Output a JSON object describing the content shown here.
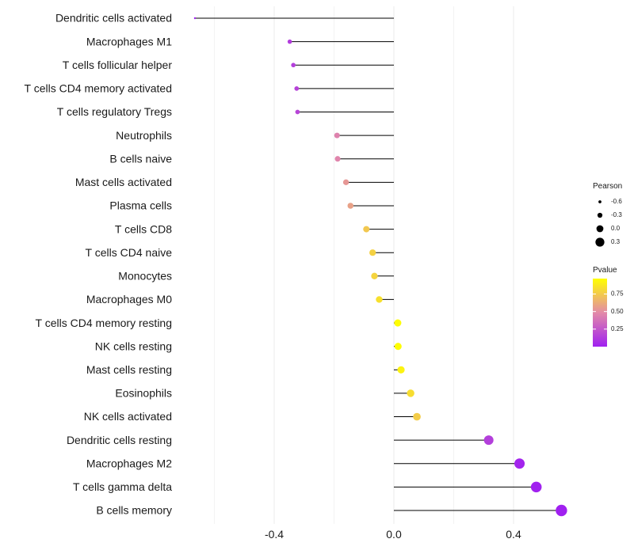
{
  "chart_data": {
    "type": "lollipop",
    "title": "",
    "xlabel": "",
    "ylabel": "",
    "xlim": [
      -0.66,
      0.6
    ],
    "x_ticks": [
      -0.4,
      0.0,
      0.4
    ],
    "x_tick_labels": [
      "-0.4",
      "0.0",
      "0.4"
    ],
    "grid": true,
    "categories": [
      "Dendritic cells activated",
      "Macrophages M1",
      "T cells follicular helper",
      "T cells CD4 memory activated",
      "T cells regulatory  Tregs",
      "Neutrophils",
      "B cells naive",
      "Mast cells activated",
      "Plasma cells",
      "T cells CD8",
      "T cells CD4 naive",
      "Monocytes",
      "Macrophages M0",
      "T cells CD4 memory resting",
      "NK cells resting",
      "Mast cells resting",
      "Eosinophils",
      "NK cells activated",
      "Dendritic cells resting",
      "Macrophages M2",
      "T cells gamma delta",
      "B cells memory"
    ],
    "pearson": [
      -0.665,
      -0.348,
      -0.336,
      -0.325,
      -0.322,
      -0.19,
      -0.188,
      -0.16,
      -0.145,
      -0.092,
      -0.071,
      -0.065,
      -0.049,
      0.013,
      0.014,
      0.024,
      0.056,
      0.077,
      0.317,
      0.42,
      0.476,
      0.56
    ],
    "pvalue": [
      0.0,
      0.13,
      0.14,
      0.16,
      0.17,
      0.45,
      0.46,
      0.54,
      0.58,
      0.74,
      0.78,
      0.79,
      0.84,
      0.96,
      0.96,
      0.92,
      0.83,
      0.76,
      0.14,
      0.02,
      0.01,
      0.0
    ],
    "legend_pearson": {
      "title": "Pearson",
      "values": [
        -0.6,
        -0.3,
        0.0,
        0.3
      ],
      "labels": [
        "-0.6",
        "-0.3",
        "0.0",
        "0.3"
      ]
    },
    "legend_pvalue": {
      "title": "Pvalue",
      "range": [
        0.0,
        0.97
      ],
      "ticks": [
        0.25,
        0.5,
        0.75
      ],
      "tick_labels": [
        "0.25",
        "0.50",
        "0.75"
      ]
    },
    "color_low": "#a020f0",
    "color_mid": "#e38aa8",
    "color_high": "#ffff00",
    "grid_color": "#ebebeb",
    "stem_color": "#000000"
  }
}
